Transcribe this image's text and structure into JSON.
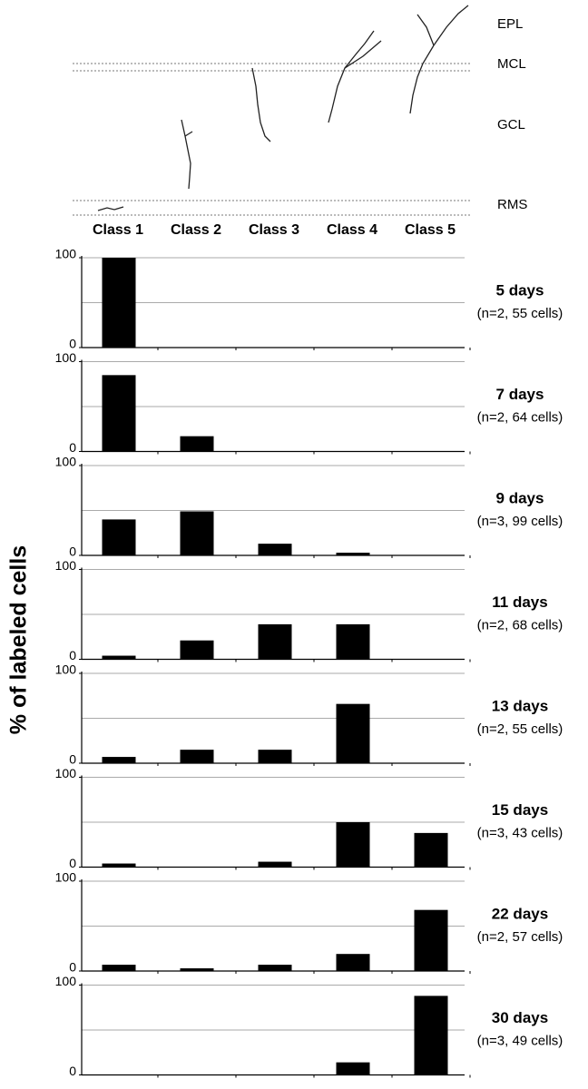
{
  "figure": {
    "layers": [
      "EPL",
      "MCL",
      "GCL",
      "RMS"
    ],
    "categories": [
      "Class 1",
      "Class 2",
      "Class 3",
      "Class 4",
      "Class 5"
    ],
    "y_label": "% of labeled cells"
  },
  "chart_data": [
    {
      "type": "bar",
      "title": "5 days",
      "subtitle": "(n=2, 55 cells)",
      "values": [
        100,
        0,
        0,
        0,
        0
      ],
      "color": "#000000",
      "ylim": [
        0,
        100
      ],
      "yticks": [
        0,
        100
      ],
      "grid": [
        50,
        100
      ]
    },
    {
      "type": "bar",
      "title": "7 days",
      "subtitle": "(n=2, 64 cells)",
      "values": [
        85,
        17,
        0,
        0,
        0
      ],
      "color": "#000000",
      "ylim": [
        0,
        100
      ],
      "yticks": [
        0,
        100
      ],
      "grid": [
        50,
        100
      ]
    },
    {
      "type": "bar",
      "title": "9 days",
      "subtitle": "(n=3, 99 cells)",
      "values": [
        40,
        49,
        13,
        3,
        0
      ],
      "color": "#000000",
      "ylim": [
        0,
        100
      ],
      "yticks": [
        0,
        100
      ],
      "grid": [
        50,
        100
      ]
    },
    {
      "type": "bar",
      "title": "11 days",
      "subtitle": "(n=2, 68 cells)",
      "values": [
        4,
        21,
        39,
        39,
        0
      ],
      "color": "#000000",
      "ylim": [
        0,
        100
      ],
      "yticks": [
        0,
        100
      ],
      "grid": [
        50,
        100
      ]
    },
    {
      "type": "bar",
      "title": "13 days",
      "subtitle": "(n=2, 55 cells)",
      "values": [
        7,
        15,
        15,
        66,
        0
      ],
      "color": "#000000",
      "ylim": [
        0,
        100
      ],
      "yticks": [
        0,
        100
      ],
      "grid": [
        50,
        100
      ]
    },
    {
      "type": "bar",
      "title": "15 days",
      "subtitle": "(n=3, 43 cells)",
      "values": [
        4,
        0,
        6,
        50,
        38
      ],
      "color": "#000000",
      "ylim": [
        0,
        100
      ],
      "yticks": [
        0,
        100
      ],
      "grid": [
        50,
        100
      ]
    },
    {
      "type": "bar",
      "title": "22 days",
      "subtitle": "(n=2, 57 cells)",
      "values": [
        7,
        3,
        7,
        19,
        68
      ],
      "color": "#000000",
      "ylim": [
        0,
        100
      ],
      "yticks": [
        0,
        100
      ],
      "grid": [
        50,
        100
      ]
    },
    {
      "type": "bar",
      "title": "30 days",
      "subtitle": "(n=3, 49 cells)",
      "values": [
        0,
        0,
        0,
        14,
        88
      ],
      "color": "#000000",
      "ylim": [
        0,
        100
      ],
      "yticks": [
        0,
        100
      ],
      "grid": [
        50,
        100
      ]
    }
  ]
}
